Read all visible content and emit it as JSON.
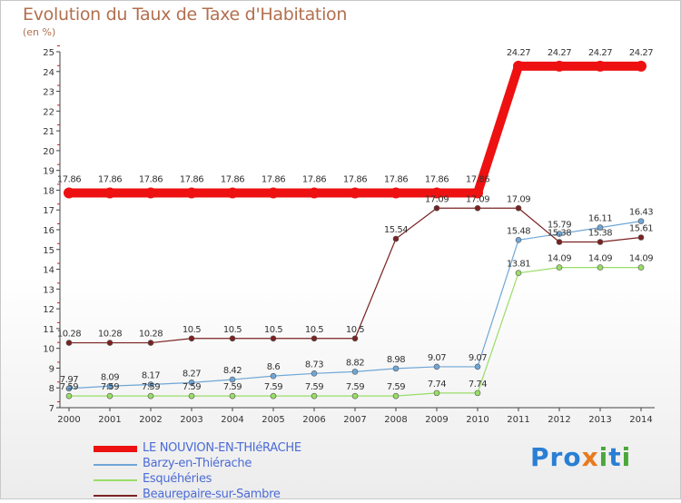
{
  "title": "Evolution du Taux de Taxe d'Habitation",
  "unit": "(en %)",
  "logo": {
    "text": "Proxiti",
    "letters": [
      "P",
      "r",
      "o",
      "x",
      "i",
      "t",
      "i"
    ],
    "colors": [
      "#2a7fd4",
      "#2a7fd4",
      "#2a7fd4",
      "#e87a1e",
      "#4aa83a",
      "#2a7fd4",
      "#4aa83a"
    ]
  },
  "chart_data": {
    "type": "line",
    "x": [
      "2000",
      "2001",
      "2002",
      "2003",
      "2004",
      "2005",
      "2006",
      "2007",
      "2008",
      "2009",
      "2010",
      "2011",
      "2012",
      "2013",
      "2014"
    ],
    "ylim": [
      7,
      25
    ],
    "yticks": [
      7,
      8,
      9,
      10,
      11,
      12,
      13,
      14,
      15,
      16,
      17,
      18,
      19,
      20,
      21,
      22,
      23,
      24,
      25
    ],
    "grid": false,
    "legend_position": "bottom-left",
    "series": [
      {
        "name": "LE NOUVION-EN-THIéRACHE",
        "color": "#ee1111",
        "width": 10,
        "marker": "circle",
        "values": [
          17.86,
          17.86,
          17.86,
          17.86,
          17.86,
          17.86,
          17.86,
          17.86,
          17.86,
          17.86,
          17.86,
          24.27,
          24.27,
          24.27,
          24.27
        ],
        "labels": [
          "17.86",
          "17.86",
          "17.86",
          "17.86",
          "17.86",
          "17.86",
          "17.86",
          "17.86",
          "17.86",
          "17.86",
          "17.86",
          "24.27",
          "24.27",
          "24.27",
          "24.27"
        ]
      },
      {
        "name": "Barzy-en-Thiérache",
        "color": "#6fa6d6",
        "width": 1.2,
        "marker": "circle",
        "values": [
          7.97,
          8.09,
          8.17,
          8.27,
          8.42,
          8.6,
          8.73,
          8.82,
          8.98,
          9.07,
          9.07,
          15.48,
          15.79,
          16.11,
          16.43
        ],
        "labels": [
          "7.97",
          "8.09",
          "8.17",
          "8.27",
          "8.42",
          "8.6",
          "8.73",
          "8.82",
          "8.98",
          "9.07",
          "9.07",
          "15.48",
          "15.79",
          "16.11",
          "16.43"
        ]
      },
      {
        "name": "Esquéhéries",
        "color": "#99dd66",
        "width": 1.2,
        "marker": "circle",
        "values": [
          7.59,
          7.59,
          7.59,
          7.59,
          7.59,
          7.59,
          7.59,
          7.59,
          7.59,
          7.74,
          7.74,
          13.81,
          14.09,
          14.09,
          14.09
        ],
        "labels": [
          "7.59",
          "7.59",
          "7.59",
          "7.59",
          "7.59",
          "7.59",
          "7.59",
          "7.59",
          "7.59",
          "7.74",
          "7.74",
          "13.81",
          "14.09",
          "14.09",
          "14.09"
        ]
      },
      {
        "name": "Beaurepaire-sur-Sambre",
        "color": "#7a2222",
        "width": 1.2,
        "marker": "circle",
        "values": [
          10.28,
          10.28,
          10.28,
          10.5,
          10.5,
          10.5,
          10.5,
          10.5,
          15.54,
          17.09,
          17.09,
          17.09,
          15.38,
          15.38,
          15.61
        ],
        "labels": [
          "10.28",
          "10.28",
          "10.28",
          "10.5",
          "10.5",
          "10.5",
          "10.5",
          "10.5",
          "15.54",
          "17.09",
          "17.09",
          "17.09",
          "15.38",
          "15.38",
          "15.61"
        ]
      }
    ]
  }
}
